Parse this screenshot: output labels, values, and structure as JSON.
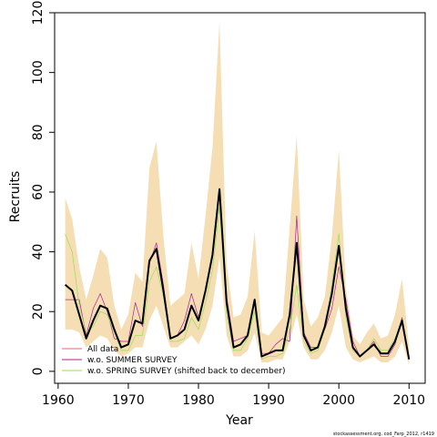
{
  "chart_data": {
    "type": "line",
    "title": "",
    "xlabel": "Year",
    "ylabel": "Recruits",
    "xlim": [
      1959.5,
      2012.3
    ],
    "ylim": [
      -4,
      120
    ],
    "x_ticks": [
      1960,
      1970,
      1980,
      1990,
      2000,
      2010
    ],
    "y_ticks": [
      0,
      20,
      40,
      60,
      80,
      100,
      120
    ],
    "grid": false,
    "legend_position": "bottom-left",
    "x": [
      1961,
      1962,
      1963,
      1964,
      1965,
      1966,
      1967,
      1968,
      1969,
      1970,
      1971,
      1972,
      1973,
      1974,
      1975,
      1976,
      1977,
      1978,
      1979,
      1980,
      1981,
      1982,
      1983,
      1984,
      1985,
      1986,
      1987,
      1988,
      1989,
      1990,
      1991,
      1992,
      1993,
      1994,
      1995,
      1996,
      1997,
      1998,
      1999,
      2000,
      2001,
      2002,
      2003,
      2004,
      2005,
      2006,
      2007,
      2008,
      2009,
      2010
    ],
    "band": {
      "color": "#f5deb3",
      "upper": [
        58,
        51,
        35,
        24,
        32,
        41,
        38,
        22,
        14,
        19,
        33,
        30,
        68,
        77,
        45,
        22,
        24,
        26,
        43,
        31,
        52,
        75,
        117,
        36,
        18,
        19,
        25,
        47,
        13,
        12,
        15,
        18,
        48,
        79,
        24,
        15,
        18,
        25,
        45,
        74,
        28,
        12,
        9,
        13,
        16,
        11,
        12,
        19,
        31,
        8
      ],
      "lower": [
        14,
        14,
        13,
        8,
        10,
        12,
        11,
        7,
        5,
        6,
        8,
        8,
        17,
        22,
        15,
        8,
        8,
        10,
        12,
        9,
        14,
        22,
        38,
        12,
        5,
        5,
        7,
        13,
        3,
        3,
        4,
        4,
        10,
        19,
        8,
        4,
        4,
        7,
        13,
        22,
        8,
        4,
        3,
        4,
        5,
        3,
        3,
        5,
        10,
        2
      ]
    },
    "series": [
      {
        "name": "All data",
        "color": "#000000",
        "width": 2,
        "values": [
          29,
          27,
          19,
          11,
          17,
          22,
          21,
          14,
          8,
          9,
          17,
          16,
          37,
          41,
          27,
          11,
          12,
          14,
          22,
          17,
          27,
          39,
          61,
          23,
          8,
          9,
          12,
          24,
          5,
          6,
          7,
          7,
          19,
          43,
          12,
          7,
          8,
          15,
          26,
          42,
          21,
          8,
          5,
          7,
          9,
          6,
          6,
          10,
          17,
          4
        ]
      },
      {
        "name": "w.o. SUMMER SURVEY",
        "color": "#aa2299",
        "width": 0.7,
        "values": [
          24,
          24,
          24,
          12,
          21,
          26,
          20,
          11,
          10,
          10,
          23,
          15,
          36,
          43,
          29,
          11,
          12,
          17,
          26,
          18,
          27,
          38,
          61,
          25,
          10,
          11,
          12,
          24,
          6,
          6,
          9,
          11,
          10,
          52,
          13,
          8,
          8,
          14,
          21,
          35,
          24,
          10,
          5,
          7,
          10,
          5,
          5,
          9,
          18,
          4
        ]
      },
      {
        "name": "w.o. SPRING SURVEY (shifted back to december)",
        "color": "#99dd55",
        "width": 0.7,
        "values": [
          46,
          40,
          22,
          13,
          15,
          20,
          19,
          13,
          7,
          7,
          12,
          12,
          30,
          35,
          25,
          10,
          10,
          11,
          18,
          14,
          23,
          34,
          55,
          19,
          7,
          7,
          11,
          20,
          4,
          5,
          5,
          6,
          14,
          29,
          10,
          6,
          7,
          14,
          29,
          46,
          18,
          7,
          5,
          7,
          11,
          7,
          7,
          11,
          16,
          4
        ]
      }
    ]
  },
  "footer": {
    "credit": "stockassessment.org, cod_Farp_2012, r1419"
  }
}
